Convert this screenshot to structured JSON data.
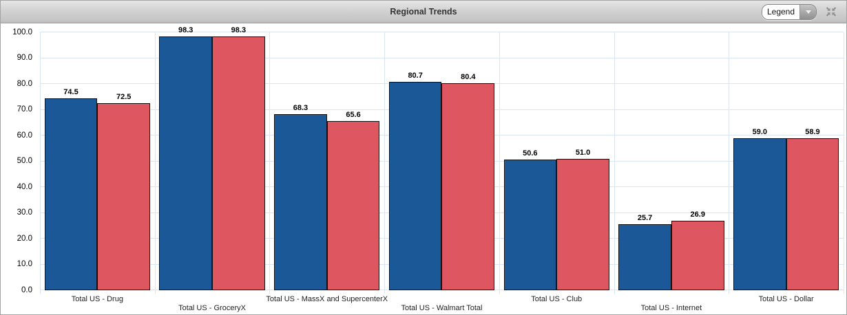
{
  "header": {
    "title": "Regional Trends",
    "legend_dropdown": {
      "value": "Legend"
    },
    "collapse_icon": "collapse-arrows-icon"
  },
  "chart_data": {
    "type": "bar",
    "title": "Regional Trends",
    "categories": [
      "Total US - Drug",
      "Total US - GroceryX",
      "Total US - MassX and SupercenterX",
      "Total US - Walmart Total",
      "Total US - Club",
      "Total US - Internet",
      "Total US - Dollar"
    ],
    "series": [
      {
        "color": "#1A5898",
        "values": [
          74.5,
          98.3,
          68.3,
          80.7,
          50.6,
          25.7,
          59.0
        ]
      },
      {
        "color": "#DE565F",
        "values": [
          72.5,
          98.3,
          65.6,
          80.4,
          51.0,
          26.9,
          58.9
        ]
      }
    ],
    "ylim": [
      0,
      100
    ],
    "yticks": [
      0,
      10,
      20,
      30,
      40,
      50,
      60,
      70,
      80,
      90,
      100
    ],
    "ytick_labels": [
      "0.0",
      "10.0",
      "20.0",
      "30.0",
      "40.0",
      "50.0",
      "60.0",
      "70.0",
      "80.0",
      "90.0",
      "100.0"
    ],
    "grid": true,
    "grid_color": "#D9E5F2",
    "bar_border_color": "#111111",
    "value_labels": true,
    "legend_position": "collapsed-dropdown"
  },
  "colors": {
    "bar_blue": "#1A5898",
    "bar_red": "#DE565F",
    "header_text": "#333333",
    "gridline": "#D9E5F2"
  }
}
